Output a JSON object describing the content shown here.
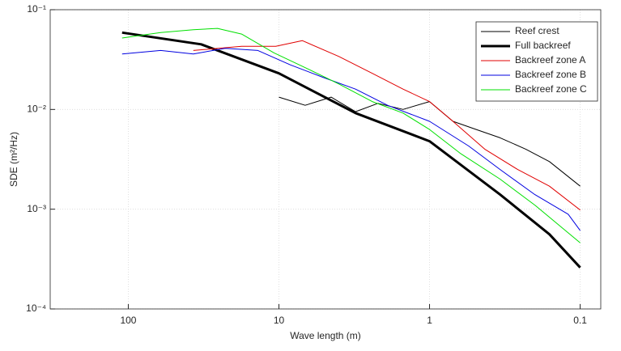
{
  "chart_data": {
    "type": "line",
    "xlabel": "Wave length (m)",
    "ylabel": "SDE (m²/Hz)",
    "xscale": "log",
    "yscale": "log",
    "xreversed": true,
    "grid": true,
    "legend": "upper right",
    "xlim": [
      330,
      0.073
    ],
    "ylim": [
      0.0001,
      0.1
    ],
    "xticks": [
      100,
      10,
      1,
      0.1
    ],
    "yticks": [
      {
        "value": 0.1,
        "label": "10⁻¹"
      },
      {
        "value": 0.01,
        "label": "10⁻²"
      },
      {
        "value": 0.001,
        "label": "10⁻³"
      },
      {
        "value": 0.0001,
        "label": "10⁻⁴"
      }
    ],
    "series": [
      {
        "name": "Reef crest",
        "color": "#000000",
        "width": 1,
        "x": [
          10,
          6.7,
          4.5,
          3.1,
          2.2,
          1.5,
          1.0,
          0.7,
          0.49,
          0.34,
          0.23,
          0.16,
          0.1
        ],
        "values": [
          0.0133,
          0.011,
          0.0133,
          0.0095,
          0.0115,
          0.01,
          0.012,
          0.0076,
          0.0063,
          0.0052,
          0.004,
          0.003,
          0.0017
        ]
      },
      {
        "name": "Full backreef",
        "color": "#000000",
        "width": 3,
        "x": [
          110,
          32.8,
          10,
          3.1,
          1.0,
          0.34,
          0.16,
          0.1
        ],
        "values": [
          0.059,
          0.045,
          0.023,
          0.0092,
          0.0048,
          0.0014,
          0.00056,
          0.00026
        ]
      },
      {
        "name": "Backreef zone A",
        "color": "#e00000",
        "width": 1,
        "x": [
          37,
          17.7,
          10.5,
          7,
          4,
          2.4,
          1.5,
          1.0,
          0.7,
          0.43,
          0.26,
          0.16,
          0.1
        ],
        "values": [
          0.039,
          0.043,
          0.043,
          0.049,
          0.034,
          0.023,
          0.016,
          0.012,
          0.0076,
          0.004,
          0.0025,
          0.0017,
          0.00098
        ]
      },
      {
        "name": "Backreef zone B",
        "color": "#0000e0",
        "width": 1,
        "x": [
          110,
          61,
          37,
          22.7,
          13.8,
          8.4,
          5.1,
          3.1,
          1.9,
          1.0,
          0.55,
          0.34,
          0.2,
          0.12,
          0.1
        ],
        "values": [
          0.036,
          0.039,
          0.036,
          0.041,
          0.039,
          0.028,
          0.021,
          0.016,
          0.011,
          0.0076,
          0.0043,
          0.0025,
          0.0014,
          0.00089,
          0.00061
        ]
      },
      {
        "name": "Backreef zone C",
        "color": "#00e000",
        "width": 1,
        "x": [
          110,
          61,
          37,
          25.6,
          17.7,
          10.8,
          6.6,
          4,
          2.4,
          1.5,
          1.0,
          0.62,
          0.34,
          0.2,
          0.1
        ],
        "values": [
          0.052,
          0.059,
          0.063,
          0.065,
          0.057,
          0.037,
          0.026,
          0.018,
          0.012,
          0.0092,
          0.0063,
          0.0036,
          0.002,
          0.0011,
          0.00046
        ]
      }
    ]
  }
}
